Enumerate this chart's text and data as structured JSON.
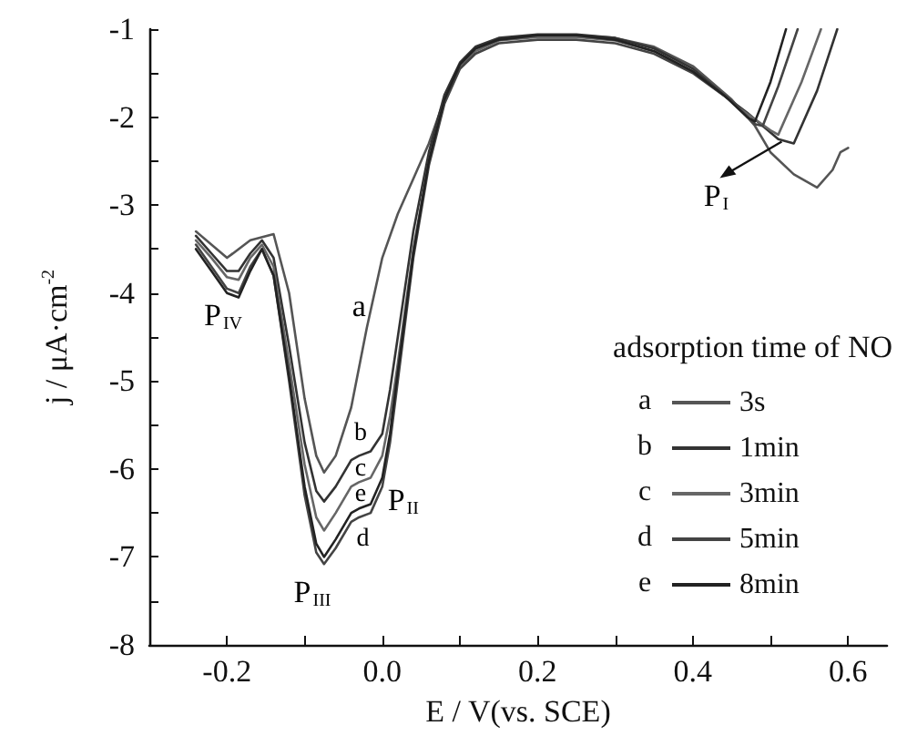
{
  "chart_data": {
    "type": "line",
    "xlabel": "E / V(vs. SCE)",
    "ylabel": "j / μA·cm$^{-2}$",
    "legend_title": "adsorption time of NO",
    "xlim": [
      -0.3,
      0.65
    ],
    "xticks": [
      {
        "value": -0.3,
        "label": null
      },
      -0.2,
      {
        "value": -0.1,
        "label": null
      },
      {
        "value": 0.0,
        "label": "0.0"
      },
      {
        "value": 0.1,
        "label": null
      },
      0.2,
      {
        "value": 0.3,
        "label": null
      },
      0.4,
      {
        "value": 0.5,
        "label": null
      },
      0.6
    ],
    "ylim": [
      -8,
      -1
    ],
    "yticks": [
      -8,
      {
        "value": -7.5,
        "label": null
      },
      -7,
      {
        "value": -6.5,
        "label": null
      },
      -6,
      {
        "value": -5.5,
        "label": null
      },
      -5,
      {
        "value": -4.5,
        "label": null
      },
      -4,
      {
        "value": -3.5,
        "label": null
      },
      -3,
      {
        "value": -2.5,
        "label": null
      },
      -2,
      {
        "value": -1.5,
        "label": null
      },
      -1
    ],
    "grid": false,
    "legend": "right",
    "marker": "none",
    "line_style": "solid",
    "series": [
      {
        "name": "3s",
        "color": "#555555",
        "x": [
          -0.24,
          -0.2,
          -0.17,
          -0.14,
          -0.12,
          -0.1,
          -0.085,
          -0.075,
          -0.06,
          -0.04,
          -0.02,
          0.0,
          0.02,
          0.04,
          0.06,
          0.08,
          0.1,
          0.12,
          0.15,
          0.2,
          0.25,
          0.3,
          0.35,
          0.4,
          0.45,
          0.48,
          0.5,
          0.53,
          0.56,
          0.58,
          0.59,
          0.6
        ],
        "values": [
          -3.3,
          -3.6,
          -3.4,
          -3.33,
          -4.0,
          -5.2,
          -5.85,
          -6.04,
          -5.85,
          -5.3,
          -4.4,
          -3.6,
          -3.1,
          -2.7,
          -2.3,
          -1.8,
          -1.4,
          -1.22,
          -1.12,
          -1.08,
          -1.07,
          -1.1,
          -1.2,
          -1.42,
          -1.8,
          -2.1,
          -2.4,
          -2.65,
          -2.8,
          -2.6,
          -2.4,
          -2.35
        ]
      },
      {
        "name": "1min",
        "color": "#333333",
        "x": [
          -0.24,
          -0.22,
          -0.2,
          -0.185,
          -0.17,
          -0.155,
          -0.14,
          -0.12,
          -0.1,
          -0.085,
          -0.075,
          -0.06,
          -0.04,
          -0.03,
          -0.015,
          0.0,
          0.01,
          0.02,
          0.04,
          0.06,
          0.08,
          0.1,
          0.12,
          0.15,
          0.2,
          0.25,
          0.3,
          0.35,
          0.4,
          0.44,
          0.47,
          0.51,
          0.53,
          0.56,
          0.586
        ],
        "values": [
          -3.35,
          -3.55,
          -3.75,
          -3.75,
          -3.55,
          -3.4,
          -3.6,
          -4.6,
          -5.7,
          -6.25,
          -6.37,
          -6.2,
          -5.9,
          -5.85,
          -5.8,
          -5.6,
          -5.1,
          -4.5,
          -3.3,
          -2.4,
          -1.75,
          -1.38,
          -1.2,
          -1.1,
          -1.06,
          -1.06,
          -1.1,
          -1.22,
          -1.45,
          -1.75,
          -1.95,
          -2.25,
          -2.3,
          -1.7,
          -1.0
        ]
      },
      {
        "name": "3min",
        "color": "#666666",
        "x": [
          -0.24,
          -0.22,
          -0.2,
          -0.185,
          -0.17,
          -0.155,
          -0.14,
          -0.12,
          -0.1,
          -0.085,
          -0.075,
          -0.06,
          -0.04,
          -0.03,
          -0.015,
          0.0,
          0.01,
          0.02,
          0.04,
          0.06,
          0.08,
          0.1,
          0.12,
          0.15,
          0.2,
          0.25,
          0.3,
          0.35,
          0.4,
          0.44,
          0.46,
          0.5,
          0.51,
          0.54,
          0.565
        ],
        "values": [
          -3.4,
          -3.6,
          -3.82,
          -3.85,
          -3.6,
          -3.45,
          -3.7,
          -4.8,
          -5.95,
          -6.55,
          -6.7,
          -6.5,
          -6.2,
          -6.15,
          -6.1,
          -5.85,
          -5.4,
          -4.8,
          -3.5,
          -2.5,
          -1.8,
          -1.42,
          -1.25,
          -1.13,
          -1.09,
          -1.09,
          -1.13,
          -1.25,
          -1.48,
          -1.75,
          -1.9,
          -2.15,
          -2.2,
          -1.6,
          -1.0
        ]
      },
      {
        "name": "5min",
        "color": "#444444",
        "x": [
          -0.24,
          -0.22,
          -0.2,
          -0.185,
          -0.17,
          -0.155,
          -0.14,
          -0.12,
          -0.1,
          -0.085,
          -0.075,
          -0.06,
          -0.04,
          -0.03,
          -0.015,
          0.0,
          0.01,
          0.02,
          0.04,
          0.06,
          0.08,
          0.1,
          0.12,
          0.15,
          0.2,
          0.25,
          0.3,
          0.35,
          0.4,
          0.45,
          0.48,
          0.49,
          0.51,
          0.535
        ],
        "values": [
          -3.45,
          -3.7,
          -3.95,
          -4.0,
          -3.7,
          -3.5,
          -3.8,
          -5.0,
          -6.3,
          -6.95,
          -7.08,
          -6.9,
          -6.6,
          -6.55,
          -6.5,
          -6.2,
          -5.7,
          -5.0,
          -3.6,
          -2.55,
          -1.85,
          -1.45,
          -1.28,
          -1.16,
          -1.12,
          -1.12,
          -1.16,
          -1.28,
          -1.5,
          -1.82,
          -2.08,
          -2.1,
          -1.65,
          -1.0
        ]
      },
      {
        "name": "8min",
        "color": "#222222",
        "x": [
          -0.24,
          -0.22,
          -0.2,
          -0.185,
          -0.17,
          -0.155,
          -0.14,
          -0.12,
          -0.1,
          -0.085,
          -0.075,
          -0.06,
          -0.04,
          -0.03,
          -0.015,
          0.0,
          0.01,
          0.02,
          0.04,
          0.06,
          0.08,
          0.1,
          0.12,
          0.15,
          0.2,
          0.25,
          0.3,
          0.35,
          0.4,
          0.44,
          0.47,
          0.48,
          0.5,
          0.52
        ],
        "values": [
          -3.5,
          -3.75,
          -4.0,
          -4.05,
          -3.75,
          -3.5,
          -3.8,
          -4.95,
          -6.2,
          -6.85,
          -7.0,
          -6.8,
          -6.5,
          -6.45,
          -6.4,
          -6.1,
          -5.6,
          -4.9,
          -3.55,
          -2.5,
          -1.8,
          -1.4,
          -1.22,
          -1.12,
          -1.07,
          -1.07,
          -1.12,
          -1.25,
          -1.48,
          -1.75,
          -2.0,
          -2.05,
          -1.6,
          -1.0
        ]
      }
    ],
    "annotations": [
      "a",
      "b",
      "c",
      "d",
      "e",
      "P$_{IV}$",
      "P$_{III}$",
      "P$_{II}$",
      "P$_{I}$"
    ]
  }
}
